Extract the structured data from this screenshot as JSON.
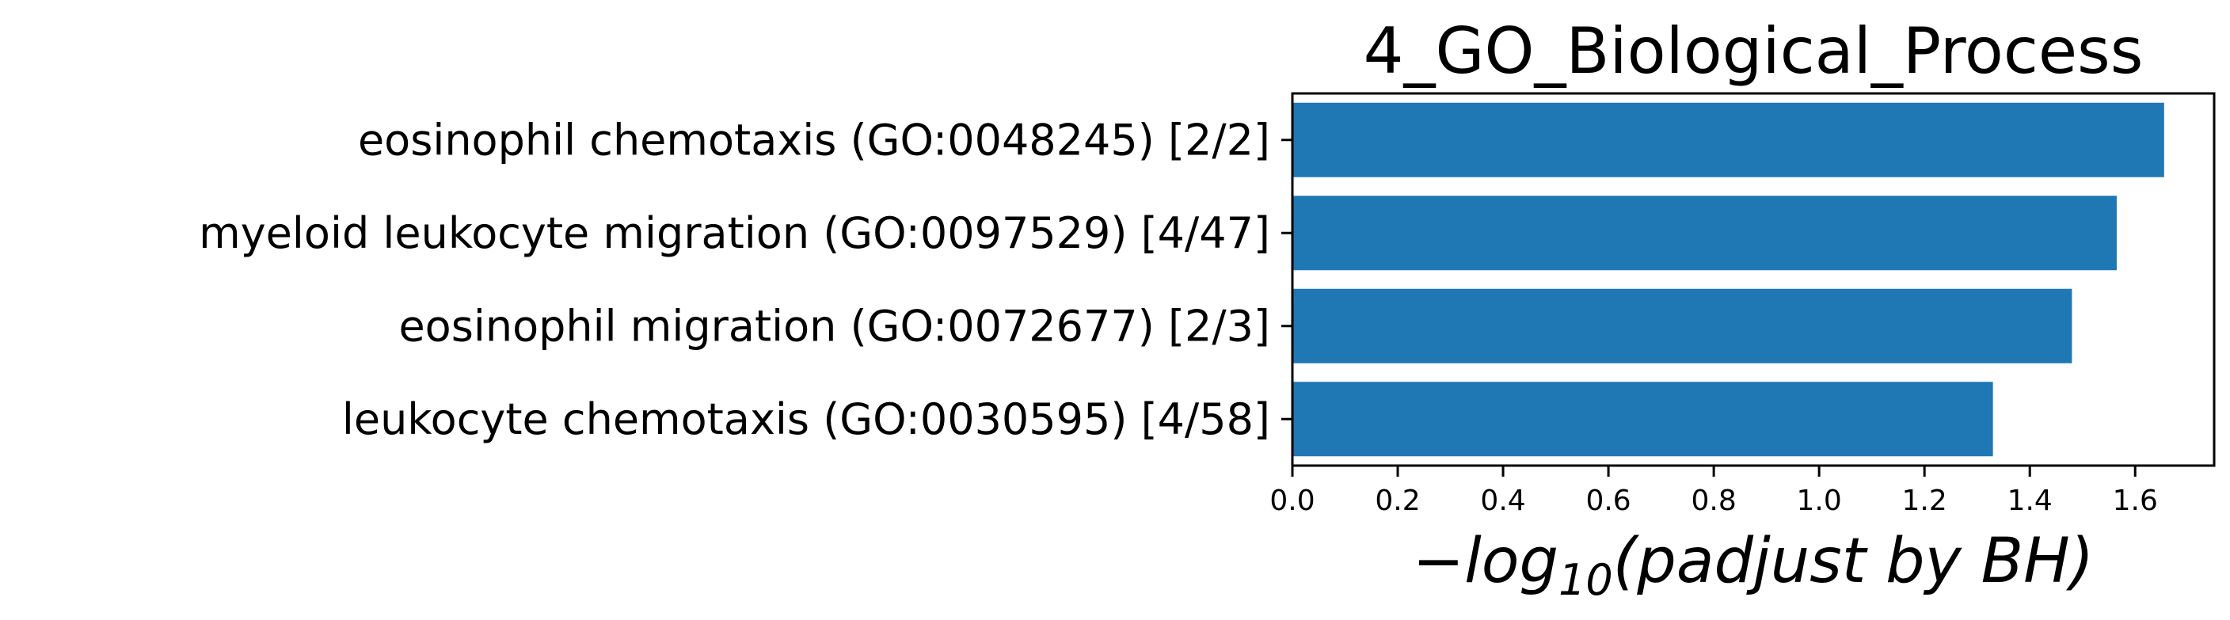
{
  "chart_data": {
    "type": "bar",
    "orientation": "horizontal",
    "title": "4_GO_Biological_Process",
    "categories": [
      "eosinophil chemotaxis (GO:0048245) [2/2]",
      "myeloid leukocyte migration (GO:0097529) [4/47]",
      "eosinophil migration (GO:0072677) [2/3]",
      "leukocyte chemotaxis (GO:0030595) [4/58]"
    ],
    "values": [
      1.655,
      1.565,
      1.48,
      1.33
    ],
    "xlabel": {
      "prefix": "−",
      "base": "log",
      "subscript": "10",
      "suffix": "(padjust by BH)"
    },
    "xlim": [
      0.0,
      1.75
    ],
    "xticks": [
      "0.0",
      "0.2",
      "0.4",
      "0.6",
      "0.8",
      "1.0",
      "1.2",
      "1.4",
      "1.6"
    ],
    "grid": false,
    "legend": false,
    "bar_color": "#1f77b4"
  }
}
